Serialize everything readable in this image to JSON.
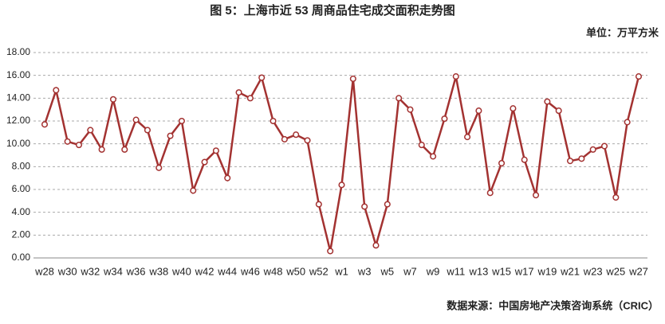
{
  "chart_data": {
    "type": "line",
    "title": "图 5：上海市近 53 周商品住宅成交面积走势图",
    "unit": "单位：万平方米",
    "source": "数据来源：中国房地产决策咨询系统（CRIC）",
    "categories": [
      "w28",
      null,
      "w30",
      null,
      "w32",
      null,
      "w34",
      null,
      "w36",
      null,
      "w38",
      null,
      "w40",
      null,
      "w42",
      null,
      "w44",
      null,
      "w46",
      null,
      "w48",
      null,
      "w50",
      null,
      "w52",
      null,
      "w1",
      null,
      "w3",
      null,
      "w5",
      null,
      "w7",
      null,
      "w9",
      null,
      "w11",
      null,
      "w13",
      null,
      "w15",
      null,
      "w17",
      null,
      "w19",
      null,
      "w21",
      null,
      "w23",
      null,
      "w25",
      null,
      "w27"
    ],
    "values": [
      11.7,
      14.7,
      10.2,
      9.9,
      11.2,
      9.5,
      13.9,
      9.5,
      12.1,
      11.2,
      7.9,
      10.7,
      12.0,
      5.9,
      8.4,
      9.4,
      7.0,
      14.5,
      14.0,
      15.8,
      12.0,
      10.4,
      10.8,
      10.3,
      4.7,
      0.6,
      6.4,
      15.7,
      4.5,
      1.1,
      4.7,
      14.0,
      13.0,
      9.9,
      8.9,
      12.2,
      15.9,
      10.6,
      12.9,
      5.7,
      8.3,
      13.1,
      8.6,
      5.5,
      13.7,
      12.9,
      8.5,
      8.7,
      9.5,
      9.8,
      5.3,
      11.9,
      15.9
    ],
    "color": "#a33231",
    "ylim": [
      0,
      18
    ],
    "yticks": [
      {
        "value": 0,
        "label": "0.00"
      },
      {
        "value": 2,
        "label": "2.00"
      },
      {
        "value": 4,
        "label": "4.00"
      },
      {
        "value": 6,
        "label": "6.00"
      },
      {
        "value": 8,
        "label": "8.00"
      },
      {
        "value": 10,
        "label": "10.00"
      },
      {
        "value": 12,
        "label": "12.00"
      },
      {
        "value": 14,
        "label": "14.00"
      },
      {
        "value": 16,
        "label": "16.00"
      },
      {
        "value": 18,
        "label": "18.00"
      }
    ],
    "grid": true
  }
}
